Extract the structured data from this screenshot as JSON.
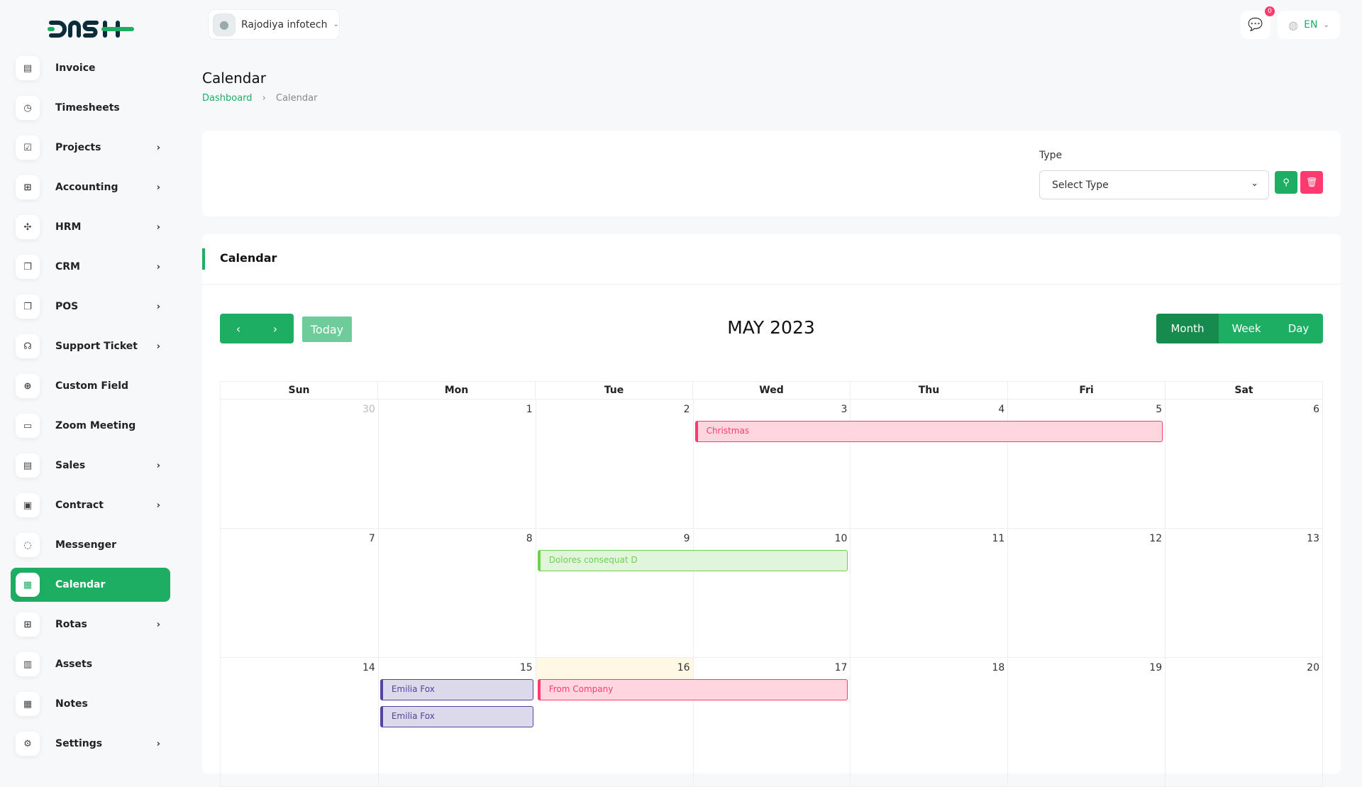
{
  "brand": {
    "logo": "DASH"
  },
  "header": {
    "company": "Rajodiya infotech",
    "notifications": "0",
    "language": "EN"
  },
  "sidebar": {
    "items": [
      {
        "label": "Invoice",
        "icon": "file-icon",
        "sub": false
      },
      {
        "label": "Timesheets",
        "icon": "clock-icon",
        "sub": false
      },
      {
        "label": "Projects",
        "icon": "checkbox-icon",
        "sub": true
      },
      {
        "label": "Accounting",
        "icon": "grid-icon",
        "sub": true
      },
      {
        "label": "HRM",
        "icon": "users-icon",
        "sub": true
      },
      {
        "label": "CRM",
        "icon": "layers-icon",
        "sub": true
      },
      {
        "label": "POS",
        "icon": "layers-icon",
        "sub": true
      },
      {
        "label": "Support Ticket",
        "icon": "headset-icon",
        "sub": true
      },
      {
        "label": "Custom Field",
        "icon": "plus-circle-icon",
        "sub": false
      },
      {
        "label": "Zoom Meeting",
        "icon": "video-icon",
        "sub": false
      },
      {
        "label": "Sales",
        "icon": "file-icon",
        "sub": true
      },
      {
        "label": "Contract",
        "icon": "device-icon",
        "sub": true
      },
      {
        "label": "Messenger",
        "icon": "chat-icon",
        "sub": false
      },
      {
        "label": "Calendar",
        "icon": "calendar-icon",
        "sub": false,
        "active": true
      },
      {
        "label": "Rotas",
        "icon": "grid-icon",
        "sub": true
      },
      {
        "label": "Assets",
        "icon": "calculator-icon",
        "sub": false
      },
      {
        "label": "Notes",
        "icon": "calendar-icon",
        "sub": false
      },
      {
        "label": "Settings",
        "icon": "gear-icon",
        "sub": true
      }
    ]
  },
  "page": {
    "title": "Calendar",
    "breadcrumb": [
      "Dashboard",
      "Calendar"
    ]
  },
  "filter": {
    "label": "Type",
    "placeholder": "Select Type"
  },
  "calendar": {
    "card_title": "Calendar",
    "month_title": "MAY 2023",
    "today_label": "Today",
    "views": [
      "Month",
      "Week",
      "Day"
    ],
    "active_view": "Month",
    "weekdays": [
      "Sun",
      "Mon",
      "Tue",
      "Wed",
      "Thu",
      "Fri",
      "Sat"
    ],
    "weeks": [
      [
        30,
        1,
        2,
        3,
        4,
        5,
        6
      ],
      [
        7,
        8,
        9,
        10,
        11,
        12,
        13
      ],
      [
        14,
        15,
        16,
        17,
        18,
        19,
        20
      ]
    ],
    "today": 16,
    "events": [
      {
        "title": "Christmas",
        "week": 0,
        "start": 3,
        "end": 5,
        "slot": 0,
        "color": "#ff3a6e",
        "bg": "#ffd6e0"
      },
      {
        "title": "Dolores consequat D",
        "week": 1,
        "start": 2,
        "end": 3,
        "slot": 0,
        "color": "#6dd04f",
        "bg": "#e1f5dc"
      },
      {
        "title": "Emilia Fox",
        "week": 2,
        "start": 1,
        "end": 1,
        "slot": 0,
        "color": "#51459d",
        "bg": "#dcd9ea"
      },
      {
        "title": "Emilia Fox",
        "week": 2,
        "start": 1,
        "end": 1,
        "slot": 1,
        "color": "#51459d",
        "bg": "#dcd9ea"
      },
      {
        "title": "From Company",
        "week": 2,
        "start": 2,
        "end": 3,
        "slot": 0,
        "color": "#ff3a6e",
        "bg": "#ffd6e0"
      }
    ]
  },
  "colors": {
    "primary": "#1eae63",
    "danger": "#ff3a6e"
  }
}
